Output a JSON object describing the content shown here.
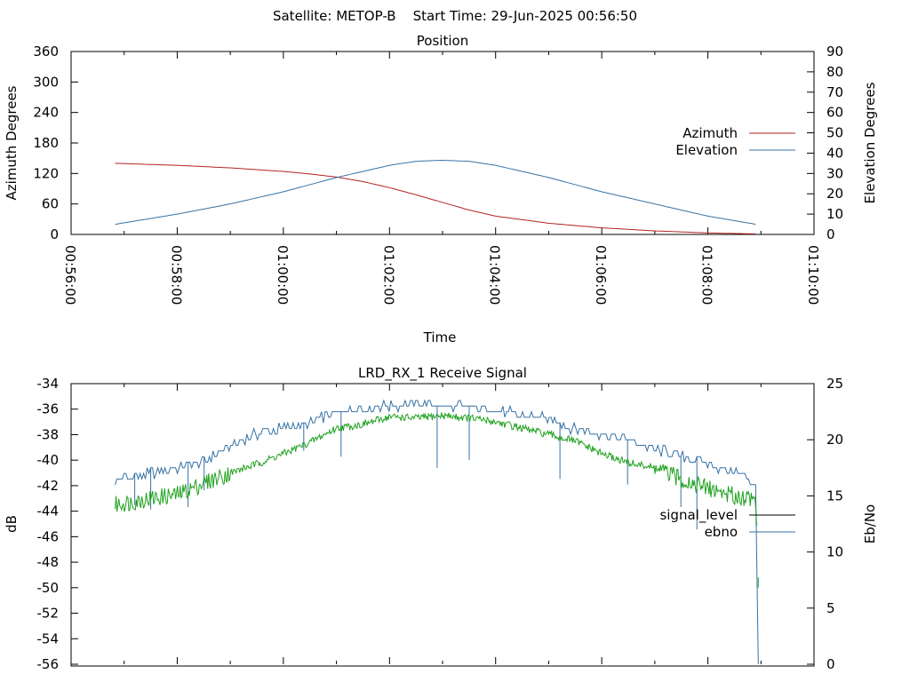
{
  "header": {
    "title": "Satellite: METOP-B    Start Time: 29-Jun-2025 00:56:50"
  },
  "colors": {
    "azimuth": "#b22222",
    "elevation": "#3572a5",
    "signal_level": "#1fa11f",
    "ebno": "#3572a5",
    "axis": "#000000"
  },
  "chart_data": [
    {
      "type": "line",
      "title": "Position",
      "xlabel": "Time",
      "ylabel": "Azimuth Degrees",
      "y2label": "Elevation Degrees",
      "x_ticks": [
        "00:56:00",
        "00:58:00",
        "01:00:00",
        "01:02:00",
        "01:04:00",
        "01:06:00",
        "01:08:00",
        "01:10:00"
      ],
      "xlim_minutes": [
        0,
        14
      ],
      "ylim": [
        0,
        360
      ],
      "y_ticks": [
        0,
        60,
        120,
        180,
        240,
        300,
        360
      ],
      "y2lim": [
        0,
        90
      ],
      "y2_ticks": [
        0,
        10,
        20,
        30,
        40,
        50,
        60,
        70,
        80,
        90
      ],
      "legend": "right",
      "x_unit_note": "minutes after 00:56:00",
      "series": [
        {
          "name": "Azimuth",
          "axis": "y",
          "color": "#b22222",
          "x": [
            0.83,
            2.0,
            3.0,
            4.0,
            4.5,
            5.0,
            5.5,
            6.0,
            6.5,
            7.0,
            7.5,
            8.0,
            9.0,
            10.0,
            11.0,
            12.0,
            12.9
          ],
          "values": [
            140,
            136,
            131,
            124,
            119,
            113,
            104,
            92,
            78,
            63,
            48,
            36,
            22,
            13,
            7,
            3,
            1
          ]
        },
        {
          "name": "Elevation",
          "axis": "y2",
          "color": "#3572a5",
          "x": [
            0.83,
            2.0,
            3.0,
            4.0,
            5.0,
            6.0,
            6.5,
            7.0,
            7.5,
            8.0,
            9.0,
            10.0,
            11.0,
            12.0,
            12.9
          ],
          "values": [
            5,
            10,
            15,
            21,
            28,
            34,
            36,
            36.5,
            36,
            34,
            28,
            21,
            15,
            9,
            5
          ]
        }
      ]
    },
    {
      "type": "line",
      "title": "LRD_RX_1 Receive Signal",
      "xlabel": "",
      "ylabel": "dB",
      "y2label": "Eb/No",
      "xlim_minutes": [
        0,
        14
      ],
      "ylim": [
        -56,
        -34
      ],
      "y_ticks": [
        -56,
        -54,
        -52,
        -50,
        -48,
        -46,
        -44,
        -42,
        -40,
        -38,
        -36,
        -34
      ],
      "y2lim": [
        0,
        25
      ],
      "y2_ticks": [
        0,
        5,
        10,
        15,
        20,
        25
      ],
      "legend": "right",
      "series": [
        {
          "name": "signal_level",
          "axis": "y",
          "color": "#1fa11f",
          "x": [
            0.83,
            1.5,
            2.0,
            2.5,
            3.0,
            3.5,
            4.0,
            4.5,
            5.0,
            5.5,
            6.0,
            6.5,
            7.0,
            7.5,
            8.0,
            8.5,
            9.0,
            9.5,
            10.0,
            10.5,
            11.0,
            11.5,
            12.0,
            12.5,
            12.9,
            12.95,
            13.0
          ],
          "values": [
            -43.5,
            -43.0,
            -42.7,
            -41.8,
            -41.0,
            -40.3,
            -39.5,
            -38.6,
            -37.5,
            -37.2,
            -36.6,
            -36.7,
            -36.5,
            -36.7,
            -37.0,
            -37.5,
            -38.0,
            -38.5,
            -39.5,
            -40.2,
            -40.6,
            -41.5,
            -42.2,
            -42.8,
            -43.0,
            -49.5,
            -49.5
          ]
        },
        {
          "name": "ebno",
          "axis": "y2",
          "color": "#3572a5",
          "x": [
            0.83,
            1.5,
            2.0,
            2.5,
            3.0,
            3.5,
            4.0,
            4.5,
            5.0,
            5.5,
            6.0,
            6.5,
            7.0,
            7.5,
            8.0,
            8.5,
            9.0,
            9.5,
            10.0,
            10.5,
            11.0,
            11.5,
            12.0,
            12.5,
            12.9,
            12.95
          ],
          "values": [
            16.5,
            17.0,
            17.5,
            18.0,
            19.5,
            20.5,
            21.0,
            21.5,
            22.5,
            22.8,
            23.0,
            23.2,
            23.0,
            23.0,
            22.6,
            22.2,
            21.8,
            21.0,
            20.5,
            20.0,
            19.2,
            18.5,
            17.8,
            17.2,
            16.0,
            0.0
          ],
          "dips": [
            {
              "x": 1.2,
              "value": 14.2
            },
            {
              "x": 1.5,
              "value": 13.8
            },
            {
              "x": 2.2,
              "value": 14.0
            },
            {
              "x": 2.5,
              "value": 15.5
            },
            {
              "x": 4.4,
              "value": 19.0
            },
            {
              "x": 5.1,
              "value": 18.5
            },
            {
              "x": 6.9,
              "value": 17.5
            },
            {
              "x": 7.5,
              "value": 18.2
            },
            {
              "x": 9.2,
              "value": 16.5
            },
            {
              "x": 10.5,
              "value": 16.0
            },
            {
              "x": 11.5,
              "value": 14.0
            },
            {
              "x": 11.8,
              "value": 12.0
            }
          ]
        }
      ]
    }
  ]
}
